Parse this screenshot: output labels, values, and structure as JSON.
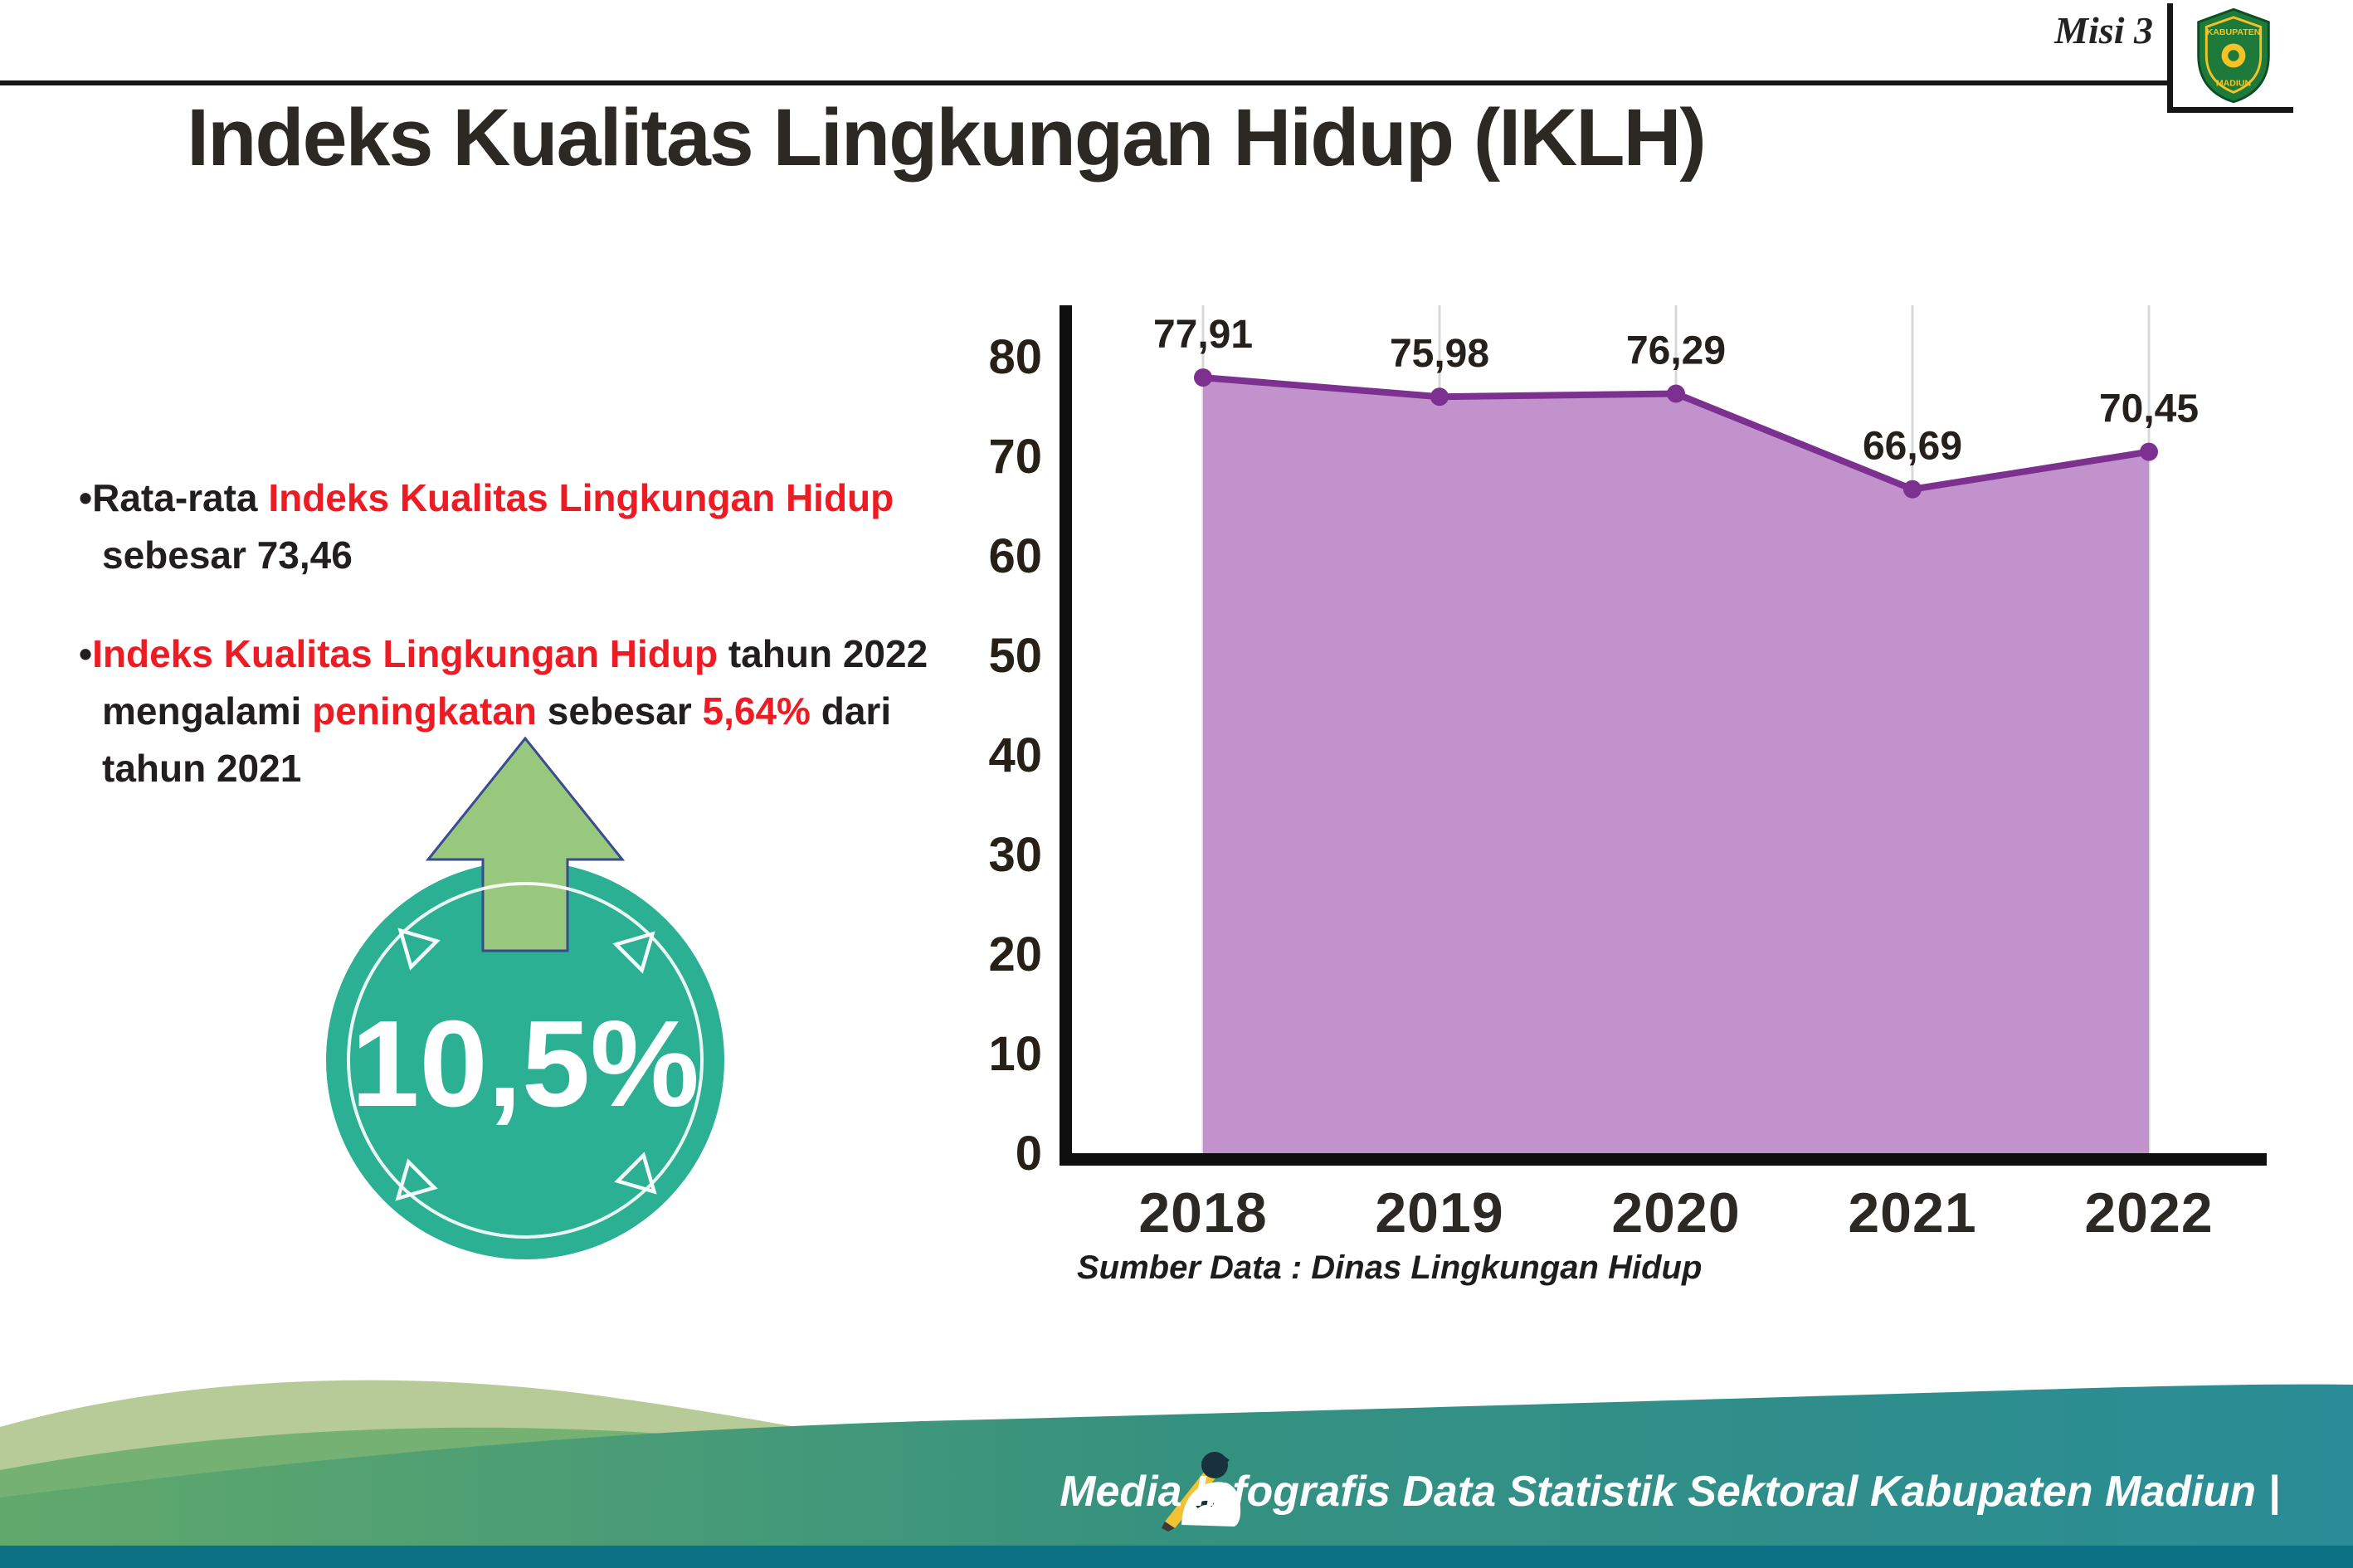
{
  "header": {
    "misi": "Misi 3",
    "title": "Indeks Kualitas Lingkungan Hidup (IKLH)",
    "logo_top": "KABUPATEN",
    "logo_bottom": "MADIUN"
  },
  "bullets": {
    "marker": "•",
    "b1": {
      "pre": "Rata-rata ",
      "highlight": "Indeks Kualitas Lingkungan Hidup",
      "line2": "sebesar 73,46"
    },
    "b2": {
      "hl1": "Indeks Kualitas Lingkungan Hidup",
      "rest1": " tahun 2022",
      "line2a": "mengalami ",
      "hl2": "peningkatan",
      "line2b": " sebesar ",
      "hl3": "5,64%",
      "line2c": " dari",
      "line3": "tahun 2021"
    }
  },
  "badge": {
    "value": "10,5%"
  },
  "chart_data": {
    "type": "area",
    "title": "Indeks Kualitas Lingkungan Hidup (IKLH)",
    "categories": [
      "2018",
      "2019",
      "2020",
      "2021",
      "2022"
    ],
    "values": [
      77.91,
      75.98,
      76.29,
      66.69,
      70.45
    ],
    "value_labels": [
      "77,91",
      "75,98",
      "76,29",
      "66,69",
      "70,45"
    ],
    "xlabel": "",
    "ylabel": "",
    "ylim": [
      0,
      80
    ],
    "ytick_step": 10,
    "grid": "vertical-only",
    "legend": "none",
    "source": "Sumber Data : Dinas Lingkungan Hidup",
    "colors": {
      "area": "#c192cb",
      "line": "#7c3191",
      "point": "#7c3191",
      "grid": "#d8d8d8",
      "axis": "#0f0f0f"
    }
  },
  "footer": {
    "credit": "Media Infografis Data Statistik Sektoral Kabupaten Madiun |"
  },
  "colors": {
    "accent_red": "#ed1c24",
    "badge_teal": "#2bb093",
    "arrow_green": "#97c87d",
    "footer_band_green": "#61a96c",
    "footer_band_teal": "#2a8c96",
    "footer_dark_strip": "#0d7186",
    "wave_sage": "#b6cb97"
  }
}
